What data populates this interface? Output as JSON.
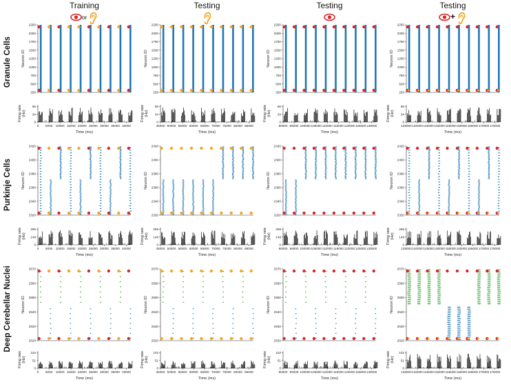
{
  "columns": [
    {
      "title": "Training",
      "stimulus": [
        "eye",
        "or",
        "ear"
      ],
      "x_ticks": [
        "0",
        "5000",
        "10000",
        "15000",
        "20000",
        "25000",
        "30000",
        "35000",
        "40000"
      ]
    },
    {
      "title": "Testing",
      "stimulus": [
        "ear"
      ],
      "x_ticks": [
        "45000",
        "50000",
        "55000",
        "60000",
        "65000",
        "70000",
        "75000",
        "80000",
        "85000"
      ]
    },
    {
      "title": "Testing",
      "stimulus": [
        "eye"
      ],
      "x_ticks": [
        "90000",
        "95000",
        "100000",
        "105000",
        "110000",
        "115000",
        "120000",
        "125000",
        "130000"
      ]
    },
    {
      "title": "Testing",
      "stimulus": [
        "eye",
        "+",
        "ear"
      ],
      "x_ticks": [
        "135000",
        "140000",
        "145000",
        "150000",
        "155000",
        "160000",
        "165000",
        "170000",
        "175000"
      ]
    }
  ],
  "rows": [
    {
      "label": "Granule Cells",
      "raster_ylabel": "Neuron ID",
      "raster_ticks": [
        "250",
        "500",
        "750",
        "1000",
        "1250",
        "1500",
        "1750",
        "2000",
        "2250"
      ],
      "rate_ylabel": [
        "Firing rate",
        "(Hz)"
      ],
      "rate_ticks": [
        "0",
        "34",
        "68"
      ]
    },
    {
      "label": "Purkinje Cells",
      "raster_ylabel": "Neuron ID",
      "raster_ticks": [
        "2320",
        "2340",
        "2360",
        "2380",
        "2400",
        "2420"
      ],
      "rate_ylabel": [
        "Firing rate",
        "(Hz)"
      ],
      "rate_ticks": [
        "0",
        "148",
        "296"
      ]
    },
    {
      "label": "Deep Cerebellar Nuclei",
      "raster_ylabel": "Neuron ID",
      "raster_ticks": [
        "2520",
        "2530",
        "2540",
        "2550",
        "2560",
        "2570"
      ],
      "rate_ylabel": [
        "Firing rate",
        "(Hz)"
      ],
      "rate_ticks": [
        "0",
        "51",
        "102"
      ]
    }
  ],
  "xlabel": "Time (ms)",
  "colors": {
    "eye_red": "#d62728",
    "ear_orange": "#f5a623",
    "spike_blue": "#1f77b4",
    "spike_green": "#2ca02c",
    "rate_black": "#111111"
  },
  "chart_data": [
    {
      "type": "scatter",
      "panel": "granule-training",
      "ylim": [
        250,
        2250
      ],
      "xlim": [
        0,
        42000
      ],
      "xlabel": "Time (ms)",
      "ylabel": "Neuron ID",
      "trials": [
        {
          "t": 500,
          "stim": "eye"
        },
        {
          "t": 5000,
          "stim": "ear"
        },
        {
          "t": 9500,
          "stim": "eye"
        },
        {
          "t": 14000,
          "stim": "ear"
        },
        {
          "t": 18500,
          "stim": "ear"
        },
        {
          "t": 23000,
          "stim": "eye"
        },
        {
          "t": 27500,
          "stim": "ear"
        },
        {
          "t": 32000,
          "stim": "eye"
        },
        {
          "t": 36500,
          "stim": "ear"
        },
        {
          "t": 41000,
          "stim": "eye"
        }
      ],
      "blue_activity": "full"
    },
    {
      "type": "scatter",
      "panel": "granule-test-ear",
      "ylim": [
        250,
        2250
      ],
      "xlim": [
        45000,
        87000
      ],
      "xlabel": "Time (ms)",
      "ylabel": "Neuron ID",
      "trials": [
        {
          "t": 45500,
          "stim": "ear"
        },
        {
          "t": 50000,
          "stim": "ear"
        },
        {
          "t": 54500,
          "stim": "ear"
        },
        {
          "t": 59000,
          "stim": "ear"
        },
        {
          "t": 63500,
          "stim": "ear"
        },
        {
          "t": 68000,
          "stim": "ear"
        },
        {
          "t": 72500,
          "stim": "ear"
        },
        {
          "t": 77000,
          "stim": "ear"
        },
        {
          "t": 81500,
          "stim": "ear"
        },
        {
          "t": 86000,
          "stim": "ear"
        }
      ],
      "blue_activity": "full"
    },
    {
      "type": "scatter",
      "panel": "granule-test-eye",
      "ylim": [
        250,
        2250
      ],
      "xlim": [
        90000,
        132000
      ],
      "xlabel": "Time (ms)",
      "ylabel": "Neuron ID",
      "trials": [
        {
          "t": 90500,
          "stim": "eye"
        },
        {
          "t": 95000,
          "stim": "eye"
        },
        {
          "t": 99500,
          "stim": "eye"
        },
        {
          "t": 104000,
          "stim": "eye"
        },
        {
          "t": 108500,
          "stim": "eye"
        },
        {
          "t": 113000,
          "stim": "eye"
        },
        {
          "t": 117500,
          "stim": "eye"
        },
        {
          "t": 122000,
          "stim": "eye"
        },
        {
          "t": 126500,
          "stim": "eye"
        },
        {
          "t": 131000,
          "stim": "eye"
        }
      ],
      "blue_activity": "full"
    },
    {
      "type": "scatter",
      "panel": "granule-test-both",
      "ylim": [
        250,
        2250
      ],
      "xlim": [
        135000,
        177000
      ],
      "xlabel": "Time (ms)",
      "ylabel": "Neuron ID",
      "trials": [
        {
          "t": 135500,
          "stim": "both"
        },
        {
          "t": 140000,
          "stim": "both"
        },
        {
          "t": 144500,
          "stim": "both"
        },
        {
          "t": 149000,
          "stim": "both"
        },
        {
          "t": 153500,
          "stim": "both"
        },
        {
          "t": 158000,
          "stim": "both"
        },
        {
          "t": 162500,
          "stim": "both"
        },
        {
          "t": 167000,
          "stim": "both"
        },
        {
          "t": 171500,
          "stim": "both"
        },
        {
          "t": 176000,
          "stim": "both"
        }
      ],
      "blue_activity": "full"
    },
    {
      "type": "scatter",
      "panel": "purkinje-training",
      "ylim": [
        2320,
        2420
      ],
      "xlim": [
        0,
        42000
      ],
      "xlabel": "Time (ms)",
      "ylabel": "Neuron ID",
      "trials": [
        {
          "t": 500,
          "stim": "eye"
        },
        {
          "t": 5000,
          "stim": "ear"
        },
        {
          "t": 9500,
          "stim": "eye"
        },
        {
          "t": 14000,
          "stim": "ear"
        },
        {
          "t": 18500,
          "stim": "ear"
        },
        {
          "t": 23000,
          "stim": "eye"
        },
        {
          "t": 27500,
          "stim": "ear"
        },
        {
          "t": 32000,
          "stim": "eye"
        },
        {
          "t": 36500,
          "stim": "ear"
        },
        {
          "t": 41000,
          "stim": "eye"
        }
      ],
      "blue_activity": "mixed"
    },
    {
      "type": "scatter",
      "panel": "purkinje-test-ear",
      "ylim": [
        2320,
        2420
      ],
      "xlim": [
        45000,
        87000
      ],
      "xlabel": "Time (ms)",
      "ylabel": "Neuron ID",
      "trials": [
        {
          "t": 45500,
          "stim": "ear"
        },
        {
          "t": 50000,
          "stim": "ear"
        },
        {
          "t": 54500,
          "stim": "ear"
        },
        {
          "t": 59000,
          "stim": "ear"
        },
        {
          "t": 63500,
          "stim": "ear"
        },
        {
          "t": 68000,
          "stim": "ear"
        },
        {
          "t": 72500,
          "stim": "ear"
        },
        {
          "t": 77000,
          "stim": "ear"
        },
        {
          "t": 81500,
          "stim": "ear"
        },
        {
          "t": 86000,
          "stim": "ear"
        }
      ],
      "blue_activity": "lower-first-half"
    },
    {
      "type": "scatter",
      "panel": "purkinje-test-eye",
      "ylim": [
        2320,
        2420
      ],
      "xlim": [
        90000,
        132000
      ],
      "xlabel": "Time (ms)",
      "ylabel": "Neuron ID",
      "trials": [
        {
          "t": 90500,
          "stim": "eye"
        },
        {
          "t": 95000,
          "stim": "eye"
        },
        {
          "t": 99500,
          "stim": "eye"
        },
        {
          "t": 104000,
          "stim": "eye"
        },
        {
          "t": 108500,
          "stim": "eye"
        },
        {
          "t": 113000,
          "stim": "eye"
        },
        {
          "t": 117500,
          "stim": "eye"
        },
        {
          "t": 122000,
          "stim": "eye"
        },
        {
          "t": 126500,
          "stim": "eye"
        },
        {
          "t": 131000,
          "stim": "eye"
        }
      ],
      "blue_activity": "upper-late"
    },
    {
      "type": "scatter",
      "panel": "purkinje-test-both",
      "ylim": [
        2320,
        2420
      ],
      "xlim": [
        135000,
        177000
      ],
      "xlabel": "Time (ms)",
      "ylabel": "Neuron ID",
      "trials": [
        {
          "t": 135500,
          "stim": "both"
        },
        {
          "t": 140000,
          "stim": "both"
        },
        {
          "t": 144500,
          "stim": "both"
        },
        {
          "t": 149000,
          "stim": "both"
        },
        {
          "t": 153500,
          "stim": "both"
        },
        {
          "t": 158000,
          "stim": "both"
        },
        {
          "t": 162500,
          "stim": "both"
        },
        {
          "t": 167000,
          "stim": "both"
        },
        {
          "t": 171500,
          "stim": "both"
        },
        {
          "t": 176000,
          "stim": "both"
        }
      ],
      "blue_activity": "mixed"
    },
    {
      "type": "scatter",
      "panel": "dcn-training",
      "ylim": [
        2520,
        2570
      ],
      "xlim": [
        0,
        42000
      ],
      "xlabel": "Time (ms)",
      "ylabel": "Neuron ID",
      "trials": [
        {
          "t": 500,
          "stim": "eye"
        },
        {
          "t": 5000,
          "stim": "ear"
        },
        {
          "t": 9500,
          "stim": "eye"
        },
        {
          "t": 14000,
          "stim": "ear"
        },
        {
          "t": 18500,
          "stim": "ear"
        },
        {
          "t": 23000,
          "stim": "eye"
        },
        {
          "t": 27500,
          "stim": "ear"
        },
        {
          "t": 32000,
          "stim": "eye"
        },
        {
          "t": 36500,
          "stim": "ear"
        },
        {
          "t": 41000,
          "stim": "eye"
        }
      ],
      "blue_activity": "sparse"
    },
    {
      "type": "scatter",
      "panel": "dcn-test-ear",
      "ylim": [
        2520,
        2570
      ],
      "xlim": [
        45000,
        87000
      ],
      "xlabel": "Time (ms)",
      "ylabel": "Neuron ID",
      "trials": [
        {
          "t": 45500,
          "stim": "ear"
        },
        {
          "t": 50000,
          "stim": "ear"
        },
        {
          "t": 54500,
          "stim": "ear"
        },
        {
          "t": 59000,
          "stim": "ear"
        },
        {
          "t": 63500,
          "stim": "ear"
        },
        {
          "t": 68000,
          "stim": "ear"
        },
        {
          "t": 72500,
          "stim": "ear"
        },
        {
          "t": 77000,
          "stim": "ear"
        },
        {
          "t": 81500,
          "stim": "ear"
        },
        {
          "t": 86000,
          "stim": "ear"
        }
      ],
      "blue_activity": "sparse"
    },
    {
      "type": "scatter",
      "panel": "dcn-test-eye",
      "ylim": [
        2520,
        2570
      ],
      "xlim": [
        90000,
        132000
      ],
      "xlabel": "Time (ms)",
      "ylabel": "Neuron ID",
      "trials": [
        {
          "t": 90500,
          "stim": "eye"
        },
        {
          "t": 95000,
          "stim": "eye"
        },
        {
          "t": 99500,
          "stim": "eye"
        },
        {
          "t": 104000,
          "stim": "eye"
        },
        {
          "t": 108500,
          "stim": "eye"
        },
        {
          "t": 113000,
          "stim": "eye"
        },
        {
          "t": 117500,
          "stim": "eye"
        },
        {
          "t": 122000,
          "stim": "eye"
        },
        {
          "t": 126500,
          "stim": "eye"
        },
        {
          "t": 131000,
          "stim": "eye"
        }
      ],
      "blue_activity": "sparse"
    },
    {
      "type": "scatter",
      "panel": "dcn-test-both",
      "ylim": [
        2520,
        2570
      ],
      "xlim": [
        135000,
        177000
      ],
      "xlabel": "Time (ms)",
      "ylabel": "Neuron ID",
      "trials": [
        {
          "t": 135500,
          "stim": "both"
        },
        {
          "t": 140000,
          "stim": "both"
        },
        {
          "t": 144500,
          "stim": "both"
        },
        {
          "t": 149000,
          "stim": "both"
        },
        {
          "t": 153500,
          "stim": "both"
        },
        {
          "t": 158000,
          "stim": "both"
        },
        {
          "t": 162500,
          "stim": "both"
        },
        {
          "t": 167000,
          "stim": "both"
        },
        {
          "t": 171500,
          "stim": "both"
        },
        {
          "t": 176000,
          "stim": "both"
        }
      ],
      "blue_activity": "dense"
    }
  ]
}
